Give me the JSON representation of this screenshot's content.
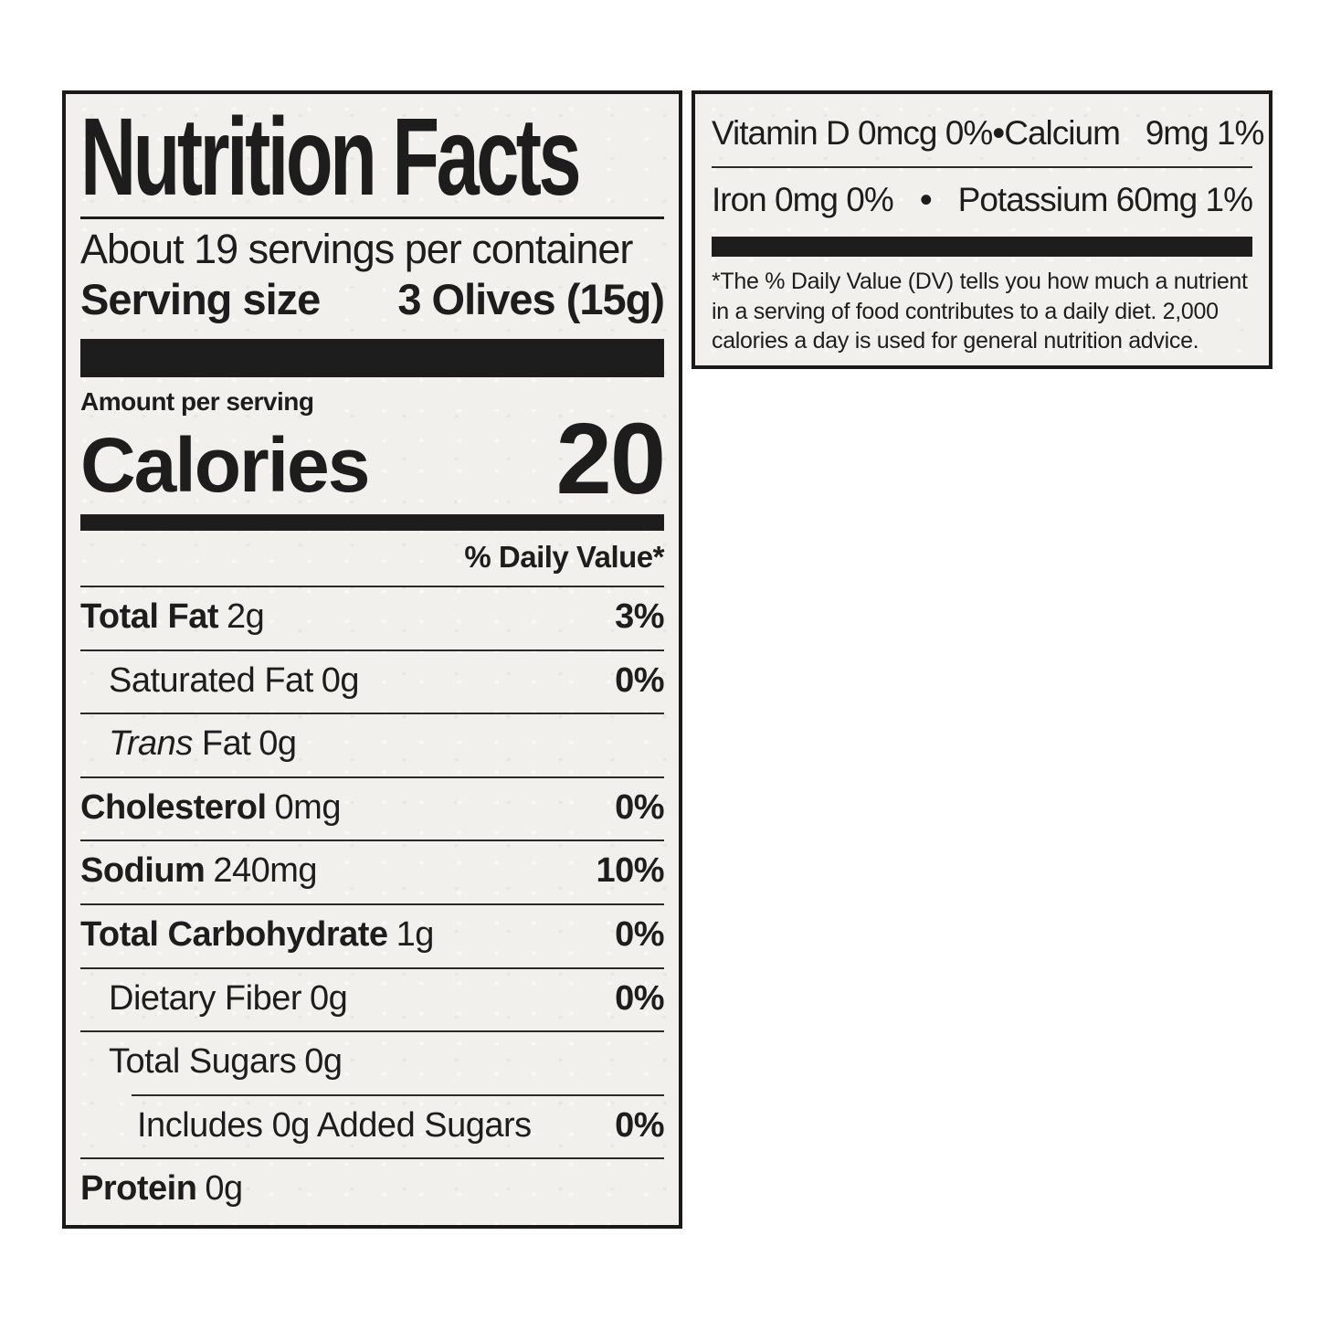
{
  "colors": {
    "label_bg": "#f2f0ec",
    "ink": "#1d1d1d",
    "page_bg": "#ffffff"
  },
  "label": {
    "title": "Nutrition Facts",
    "servings_per_container": "About 19 servings per container",
    "serving_size_label": "Serving size",
    "serving_size_value": "3 Olives (15g)",
    "amount_per_serving": "Amount per serving",
    "calories_label": "Calories",
    "calories_value": "20",
    "daily_value_header": "% Daily Value*",
    "rows": [
      {
        "name": "Total Fat",
        "amount": "2g",
        "dv": "3%",
        "bold": true,
        "indent": 0
      },
      {
        "name": "Saturated Fat",
        "amount": "0g",
        "dv": "0%",
        "bold": false,
        "indent": 1
      },
      {
        "name_italic": "Trans",
        "name": " Fat",
        "amount": "0g",
        "dv": "",
        "bold": false,
        "indent": 1
      },
      {
        "name": "Cholesterol",
        "amount": "0mg",
        "dv": "0%",
        "bold": true,
        "indent": 0
      },
      {
        "name": "Sodium",
        "amount": "240mg",
        "dv": "10%",
        "bold": true,
        "indent": 0
      },
      {
        "name": "Total Carbohydrate",
        "amount": "1g",
        "dv": "0%",
        "bold": true,
        "indent": 0
      },
      {
        "name": "Dietary Fiber",
        "amount": "0g",
        "dv": "0%",
        "bold": false,
        "indent": 1
      },
      {
        "name": "Total Sugars",
        "amount": "0g",
        "dv": "",
        "bold": false,
        "indent": 1
      },
      {
        "name": "Includes 0g Added Sugars",
        "amount": "",
        "dv": "0%",
        "bold": false,
        "indent": 2,
        "divider_indent": true
      },
      {
        "name": "Protein",
        "amount": "0g",
        "dv": "",
        "bold": true,
        "indent": 0
      }
    ]
  },
  "side_panel": {
    "micronutrients": [
      {
        "left": "Vitamin D 0mcg 0%",
        "sep": "•",
        "right": "Calcium   9mg 1%"
      },
      {
        "left": "Iron 0mg 0%",
        "sep": "•",
        "right": "Potassium 60mg 1%"
      }
    ],
    "footnote": "*The % Daily Value (DV) tells you how much a nutrient in a serving of food contributes to a daily diet. 2,000 calories a day is used for general nutrition advice."
  }
}
